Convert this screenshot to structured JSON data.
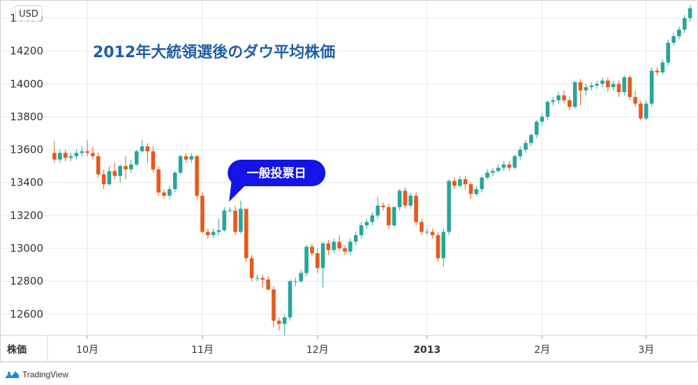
{
  "brand": {
    "name": "TradingView",
    "icon": "tradingview-logo-icon"
  },
  "colors": {
    "up": "#26a69a",
    "down": "#e8591a",
    "title": "#1f5fa8",
    "callout": "#1414e6",
    "grid": "#e6e6e6"
  },
  "chart_data": {
    "type": "candlestick",
    "title": "2012年大統領選後のダウ平均株価",
    "unit_label": "USD",
    "xlabel": "株価",
    "ylim": [
      12470,
      14510
    ],
    "y_ticks": [
      12600,
      12800,
      13000,
      13200,
      13400,
      13600,
      13800,
      14000,
      14200,
      14400
    ],
    "x_ticks": [
      {
        "label": "10月",
        "index": 6,
        "bold": false
      },
      {
        "label": "11月",
        "index": 27,
        "bold": false
      },
      {
        "label": "12月",
        "index": 48,
        "bold": false
      },
      {
        "label": "2013",
        "index": 68,
        "bold": true
      },
      {
        "label": "2月",
        "index": 89,
        "bold": false
      },
      {
        "label": "3月",
        "index": 108,
        "bold": false
      }
    ],
    "grid": true,
    "annotation": {
      "text": "一般投票日",
      "index": 32
    },
    "candles": [
      [
        13580,
        13540,
        13650,
        13520
      ],
      [
        13540,
        13580,
        13600,
        13520
      ],
      [
        13580,
        13550,
        13600,
        13530
      ],
      [
        13550,
        13560,
        13580,
        13530
      ],
      [
        13560,
        13580,
        13600,
        13540
      ],
      [
        13580,
        13590,
        13620,
        13560
      ],
      [
        13590,
        13580,
        13660,
        13560
      ],
      [
        13580,
        13560,
        13620,
        13540
      ],
      [
        13560,
        13450,
        13580,
        13430
      ],
      [
        13450,
        13390,
        13480,
        13360
      ],
      [
        13390,
        13470,
        13500,
        13380
      ],
      [
        13470,
        13440,
        13520,
        13420
      ],
      [
        13440,
        13500,
        13510,
        13400
      ],
      [
        13500,
        13480,
        13560,
        13420
      ],
      [
        13480,
        13510,
        13540,
        13460
      ],
      [
        13510,
        13590,
        13600,
        13500
      ],
      [
        13590,
        13620,
        13660,
        13580
      ],
      [
        13620,
        13590,
        13640,
        13520
      ],
      [
        13590,
        13480,
        13620,
        13460
      ],
      [
        13480,
        13340,
        13500,
        13320
      ],
      [
        13340,
        13320,
        13360,
        13300
      ],
      [
        13320,
        13360,
        13380,
        13300
      ],
      [
        13360,
        13460,
        13470,
        13340
      ],
      [
        13460,
        13560,
        13570,
        13450
      ],
      [
        13560,
        13540,
        13580,
        13520
      ],
      [
        13540,
        13560,
        13580,
        13520
      ],
      [
        13560,
        13320,
        13570,
        13300
      ],
      [
        13320,
        13100,
        13340,
        13090
      ],
      [
        13100,
        13080,
        13120,
        13060
      ],
      [
        13080,
        13100,
        13120,
        13060
      ],
      [
        13100,
        13110,
        13180,
        13080
      ],
      [
        13110,
        13230,
        13250,
        13100
      ],
      [
        13230,
        13230,
        13250,
        13220
      ],
      [
        13230,
        13100,
        13260,
        13080
      ],
      [
        13100,
        13240,
        13290,
        13090
      ],
      [
        13240,
        12940,
        13240,
        12920
      ],
      [
        12940,
        12820,
        12960,
        12800
      ],
      [
        12820,
        12820,
        12840,
        12800
      ],
      [
        12820,
        12810,
        12840,
        12760
      ],
      [
        12810,
        12750,
        12830,
        12740
      ],
      [
        12750,
        12560,
        12770,
        12520
      ],
      [
        12560,
        12540,
        12580,
        12500
      ],
      [
        12540,
        12580,
        12600,
        12470
      ],
      [
        12580,
        12800,
        12810,
        12560
      ],
      [
        12800,
        12800,
        12820,
        12770
      ],
      [
        12800,
        12850,
        12870,
        12790
      ],
      [
        12850,
        13010,
        13020,
        12830
      ],
      [
        13010,
        12970,
        13030,
        12950
      ],
      [
        12970,
        12880,
        13000,
        12850
      ],
      [
        12880,
        13030,
        13040,
        12760
      ],
      [
        13030,
        12990,
        13050,
        12960
      ],
      [
        12990,
        13040,
        13060,
        12970
      ],
      [
        13040,
        13000,
        13080,
        12980
      ],
      [
        13000,
        12980,
        13020,
        12960
      ],
      [
        12980,
        13040,
        13060,
        12960
      ],
      [
        13040,
        13080,
        13100,
        13020
      ],
      [
        13080,
        13140,
        13160,
        13060
      ],
      [
        13140,
        13160,
        13180,
        13120
      ],
      [
        13160,
        13200,
        13220,
        13140
      ],
      [
        13200,
        13260,
        13310,
        13180
      ],
      [
        13260,
        13250,
        13280,
        13230
      ],
      [
        13250,
        13140,
        13270,
        13120
      ],
      [
        13140,
        13250,
        13260,
        13130
      ],
      [
        13250,
        13350,
        13360,
        13230
      ],
      [
        13350,
        13260,
        13370,
        13240
      ],
      [
        13260,
        13320,
        13340,
        13240
      ],
      [
        13320,
        13160,
        13340,
        13140
      ],
      [
        13160,
        13100,
        13180,
        13080
      ],
      [
        13100,
        13100,
        13120,
        13080
      ],
      [
        13100,
        13080,
        13120,
        13060
      ],
      [
        13080,
        12940,
        13100,
        12920
      ],
      [
        12940,
        13100,
        13120,
        12890
      ],
      [
        13100,
        13410,
        13420,
        13080
      ],
      [
        13410,
        13380,
        13430,
        13360
      ],
      [
        13380,
        13420,
        13440,
        13370
      ],
      [
        13420,
        13390,
        13440,
        13360
      ],
      [
        13390,
        13330,
        13400,
        13300
      ],
      [
        13330,
        13360,
        13380,
        13320
      ],
      [
        13360,
        13430,
        13440,
        13340
      ],
      [
        13430,
        13460,
        13480,
        13420
      ],
      [
        13460,
        13470,
        13490,
        13440
      ],
      [
        13470,
        13490,
        13510,
        13460
      ],
      [
        13490,
        13510,
        13530,
        13470
      ],
      [
        13510,
        13490,
        13530,
        13470
      ],
      [
        13490,
        13560,
        13570,
        13480
      ],
      [
        13560,
        13600,
        13620,
        13540
      ],
      [
        13600,
        13640,
        13660,
        13580
      ],
      [
        13640,
        13690,
        13700,
        13620
      ],
      [
        13690,
        13770,
        13780,
        13670
      ],
      [
        13770,
        13800,
        13820,
        13750
      ],
      [
        13800,
        13890,
        13900,
        13780
      ],
      [
        13890,
        13900,
        13920,
        13870
      ],
      [
        13900,
        13930,
        13950,
        13880
      ],
      [
        13930,
        13900,
        13960,
        13880
      ],
      [
        13900,
        13860,
        13920,
        13840
      ],
      [
        13860,
        14010,
        14020,
        13850
      ],
      [
        14010,
        13960,
        14030,
        13870
      ],
      [
        13960,
        13980,
        14000,
        13930
      ],
      [
        13980,
        13990,
        14010,
        13960
      ],
      [
        13990,
        14000,
        14020,
        13970
      ],
      [
        14000,
        14020,
        14040,
        13980
      ],
      [
        14020,
        13980,
        14040,
        13950
      ],
      [
        13980,
        14000,
        14020,
        13960
      ],
      [
        14000,
        13950,
        14020,
        13920
      ],
      [
        13950,
        14040,
        14050,
        13930
      ],
      [
        14040,
        13920,
        14050,
        13900
      ],
      [
        13920,
        13880,
        13960,
        13860
      ],
      [
        13880,
        13790,
        13900,
        13780
      ],
      [
        13790,
        13880,
        13900,
        13780
      ],
      [
        13880,
        14080,
        14100,
        13860
      ],
      [
        14080,
        14070,
        14100,
        14050
      ],
      [
        14070,
        14130,
        14150,
        14060
      ],
      [
        14130,
        14250,
        14270,
        14110
      ],
      [
        14250,
        14290,
        14310,
        14230
      ],
      [
        14290,
        14330,
        14350,
        14270
      ],
      [
        14330,
        14400,
        14420,
        14310
      ],
      [
        14400,
        14460,
        14480,
        14380
      ]
    ]
  }
}
